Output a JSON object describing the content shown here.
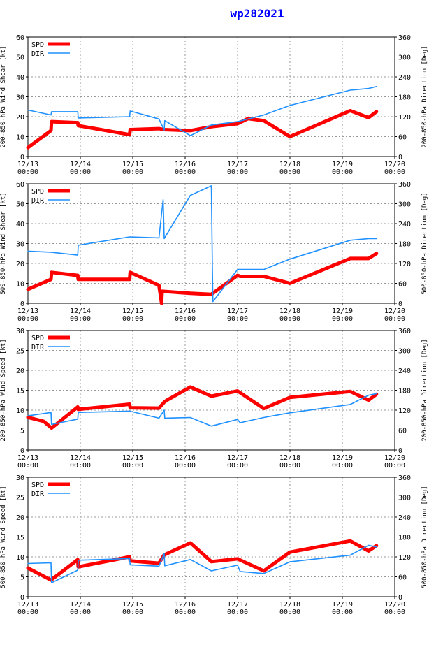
{
  "title": "wp282021",
  "colors": {
    "spd": "#ff0000",
    "dir": "#1e90ff",
    "title": "#0000ff"
  },
  "chart_data": [
    {
      "type": "line",
      "ylabel_left": "200-850-hPa Wind Shear [kt]",
      "ylabel_right": "200-850-hPa Direction [Deg]",
      "ylim_left": [
        0,
        60
      ],
      "yticks_left": [
        "0",
        "10",
        "20",
        "30",
        "40",
        "50",
        "60"
      ],
      "ylim_right": [
        0,
        360
      ],
      "yticks_right": [
        "0",
        "60",
        "120",
        "180",
        "240",
        "300",
        "360"
      ],
      "xlim": [
        0,
        7
      ],
      "xticks": [
        {
          "d": "12/13",
          "t": "00:00"
        },
        {
          "d": "12/14",
          "t": "00:00"
        },
        {
          "d": "12/15",
          "t": "00:00"
        },
        {
          "d": "12/16",
          "t": "00:00"
        },
        {
          "d": "12/17",
          "t": "00:00"
        },
        {
          "d": "12/18",
          "t": "00:00"
        },
        {
          "d": "12/19",
          "t": "00:00"
        },
        {
          "d": "12/20",
          "t": "00:00"
        }
      ],
      "grid": true,
      "legend": [
        "SPD",
        "DIR"
      ],
      "series": [
        {
          "name": "SPD",
          "axis": "left",
          "points": [
            [
              0,
              4.5
            ],
            [
              0.44,
              13
            ],
            [
              0.45,
              17.5
            ],
            [
              0.95,
              17
            ],
            [
              0.96,
              15.5
            ],
            [
              1.94,
              11
            ],
            [
              1.95,
              13.5
            ],
            [
              2.5,
              14
            ],
            [
              2.6,
              13.5
            ],
            [
              3.1,
              13
            ],
            [
              3.5,
              15
            ],
            [
              4.0,
              16.5
            ],
            [
              4.2,
              19
            ],
            [
              4.5,
              18
            ],
            [
              5.0,
              10
            ],
            [
              6.15,
              23
            ],
            [
              6.5,
              19.5
            ],
            [
              6.65,
              22.5
            ]
          ]
        },
        {
          "name": "DIR",
          "axis": "right",
          "points": [
            [
              0,
              140
            ],
            [
              0.44,
              125
            ],
            [
              0.45,
              135
            ],
            [
              0.95,
              135
            ],
            [
              0.96,
              116
            ],
            [
              1.94,
              120
            ],
            [
              1.95,
              137
            ],
            [
              2.5,
              113
            ],
            [
              2.6,
              80
            ],
            [
              2.61,
              108
            ],
            [
              3.1,
              63
            ],
            [
              3.5,
              95
            ],
            [
              4.0,
              105
            ],
            [
              4.5,
              125
            ],
            [
              5.0,
              154
            ],
            [
              6.15,
              200
            ],
            [
              6.5,
              205
            ],
            [
              6.65,
              211
            ]
          ]
        }
      ]
    },
    {
      "type": "line",
      "ylabel_left": "500-850-hPa Wind Shear [kt]",
      "ylabel_right": "500-850-hPa Direction [Deg]",
      "ylim_left": [
        0,
        60
      ],
      "yticks_left": [
        "0",
        "10",
        "20",
        "30",
        "40",
        "50",
        "60"
      ],
      "ylim_right": [
        0,
        360
      ],
      "yticks_right": [
        "0",
        "60",
        "120",
        "180",
        "240",
        "300",
        "360"
      ],
      "xlim": [
        0,
        7
      ],
      "xticks": [
        {
          "d": "12/13",
          "t": "00:00"
        },
        {
          "d": "12/14",
          "t": "00:00"
        },
        {
          "d": "12/15",
          "t": "00:00"
        },
        {
          "d": "12/16",
          "t": "00:00"
        },
        {
          "d": "12/17",
          "t": "00:00"
        },
        {
          "d": "12/18",
          "t": "00:00"
        },
        {
          "d": "12/19",
          "t": "00:00"
        },
        {
          "d": "12/20",
          "t": "00:00"
        }
      ],
      "grid": true,
      "legend": [
        "SPD",
        "DIR"
      ],
      "series": [
        {
          "name": "SPD",
          "axis": "left",
          "points": [
            [
              0,
              7
            ],
            [
              0.44,
              12
            ],
            [
              0.45,
              15.5
            ],
            [
              0.95,
              14
            ],
            [
              0.96,
              12
            ],
            [
              1.94,
              12
            ],
            [
              1.95,
              15.5
            ],
            [
              2.5,
              9
            ],
            [
              2.55,
              0
            ],
            [
              2.56,
              6
            ],
            [
              3.1,
              5
            ],
            [
              3.5,
              4.5
            ],
            [
              4.0,
              14
            ],
            [
              4.05,
              13.5
            ],
            [
              4.5,
              13.5
            ],
            [
              5.0,
              10
            ],
            [
              6.15,
              22.5
            ],
            [
              6.5,
              22.5
            ],
            [
              6.65,
              25
            ]
          ]
        },
        {
          "name": "DIR",
          "axis": "right",
          "points": [
            [
              0,
              157
            ],
            [
              0.44,
              154
            ],
            [
              0.95,
              145
            ],
            [
              0.96,
              175
            ],
            [
              1.94,
              200
            ],
            [
              2.5,
              197
            ],
            [
              2.58,
              312
            ],
            [
              2.6,
              195
            ],
            [
              3.1,
              325
            ],
            [
              3.5,
              354
            ],
            [
              3.52,
              100
            ],
            [
              3.53,
              5
            ],
            [
              4.0,
              102
            ],
            [
              4.5,
              102
            ],
            [
              5.0,
              133
            ],
            [
              6.15,
              190
            ],
            [
              6.5,
              195
            ],
            [
              6.65,
              195
            ]
          ]
        }
      ]
    },
    {
      "type": "line",
      "ylabel_left": "200-850-hPa Wind Speed [kt]",
      "ylabel_right": "200-850-hPa Direction [Deg]",
      "ylim_left": [
        0,
        30
      ],
      "yticks_left": [
        "0",
        "5",
        "10",
        "15",
        "20",
        "25",
        "30"
      ],
      "ylim_right": [
        0,
        360
      ],
      "yticks_right": [
        "0",
        "60",
        "120",
        "180",
        "240",
        "300",
        "360"
      ],
      "xlim": [
        0,
        7
      ],
      "xticks": [
        {
          "d": "12/13",
          "t": "00:00"
        },
        {
          "d": "12/14",
          "t": "00:00"
        },
        {
          "d": "12/15",
          "t": "00:00"
        },
        {
          "d": "12/16",
          "t": "00:00"
        },
        {
          "d": "12/17",
          "t": "00:00"
        },
        {
          "d": "12/18",
          "t": "00:00"
        },
        {
          "d": "12/19",
          "t": "00:00"
        },
        {
          "d": "12/20",
          "t": "00:00"
        }
      ],
      "grid": true,
      "legend": [
        "SPD",
        "DIR"
      ],
      "series": [
        {
          "name": "SPD",
          "axis": "left",
          "points": [
            [
              0,
              8.2
            ],
            [
              0.3,
              7.2
            ],
            [
              0.45,
              5.5
            ],
            [
              0.95,
              10.8
            ],
            [
              0.96,
              10.2
            ],
            [
              1.94,
              11.5
            ],
            [
              1.95,
              10.6
            ],
            [
              2.5,
              10.5
            ],
            [
              2.6,
              12
            ],
            [
              2.65,
              12.5
            ],
            [
              3.1,
              15.8
            ],
            [
              3.5,
              13.5
            ],
            [
              4.0,
              14.8
            ],
            [
              4.5,
              10.4
            ],
            [
              5.0,
              13.2
            ],
            [
              6.15,
              14.7
            ],
            [
              6.5,
              12.5
            ],
            [
              6.65,
              14
            ]
          ]
        },
        {
          "name": "DIR",
          "axis": "right",
          "points": [
            [
              0,
              103
            ],
            [
              0.44,
              113
            ],
            [
              0.45,
              77
            ],
            [
              0.95,
              93
            ],
            [
              0.96,
              113
            ],
            [
              1.94,
              117
            ],
            [
              2.5,
              96
            ],
            [
              2.6,
              120
            ],
            [
              2.61,
              96
            ],
            [
              3.1,
              98
            ],
            [
              3.5,
              72
            ],
            [
              4.0,
              92
            ],
            [
              4.05,
              82
            ],
            [
              4.5,
              98
            ],
            [
              5.0,
              112
            ],
            [
              6.15,
              137
            ],
            [
              6.5,
              165
            ],
            [
              6.65,
              170
            ]
          ]
        }
      ]
    },
    {
      "type": "line",
      "ylabel_left": "500-850-hPa Wind Speed [kt]",
      "ylabel_right": "500-850-hPa Direction [Deg]",
      "ylim_left": [
        0,
        30
      ],
      "yticks_left": [
        "0",
        "5",
        "10",
        "15",
        "20",
        "25",
        "30"
      ],
      "ylim_right": [
        0,
        360
      ],
      "yticks_right": [
        "0",
        "60",
        "120",
        "180",
        "240",
        "300",
        "360"
      ],
      "xlim": [
        0,
        7
      ],
      "xticks": [
        {
          "d": "12/13",
          "t": "00:00"
        },
        {
          "d": "12/14",
          "t": "00:00"
        },
        {
          "d": "12/15",
          "t": "00:00"
        },
        {
          "d": "12/16",
          "t": "00:00"
        },
        {
          "d": "12/17",
          "t": "00:00"
        },
        {
          "d": "12/18",
          "t": "00:00"
        },
        {
          "d": "12/19",
          "t": "00:00"
        },
        {
          "d": "12/20",
          "t": "00:00"
        }
      ],
      "grid": true,
      "legend": [
        "SPD",
        "DIR"
      ],
      "series": [
        {
          "name": "SPD",
          "axis": "left",
          "points": [
            [
              0,
              7.2
            ],
            [
              0.44,
              4.2
            ],
            [
              0.95,
              9.3
            ],
            [
              0.96,
              7.5
            ],
            [
              1.94,
              10
            ],
            [
              1.95,
              9
            ],
            [
              2.5,
              8.4
            ],
            [
              2.6,
              10.5
            ],
            [
              3.1,
              13.5
            ],
            [
              3.5,
              8.8
            ],
            [
              4.0,
              9.5
            ],
            [
              4.5,
              6.5
            ],
            [
              5.0,
              11.2
            ],
            [
              6.15,
              14
            ],
            [
              6.5,
              11.5
            ],
            [
              6.65,
              12.8
            ]
          ]
        },
        {
          "name": "DIR",
          "axis": "right",
          "points": [
            [
              0,
              100
            ],
            [
              0.44,
              102
            ],
            [
              0.45,
              42
            ],
            [
              0.95,
              80
            ],
            [
              0.96,
              110
            ],
            [
              1.94,
              115
            ],
            [
              1.95,
              96
            ],
            [
              2.5,
              92
            ],
            [
              2.6,
              130
            ],
            [
              2.61,
              93
            ],
            [
              3.1,
              112
            ],
            [
              3.5,
              78
            ],
            [
              4.0,
              95
            ],
            [
              4.05,
              76
            ],
            [
              4.5,
              70
            ],
            [
              5.0,
              105
            ],
            [
              6.15,
              125
            ],
            [
              6.5,
              155
            ],
            [
              6.65,
              150
            ]
          ]
        }
      ]
    }
  ]
}
